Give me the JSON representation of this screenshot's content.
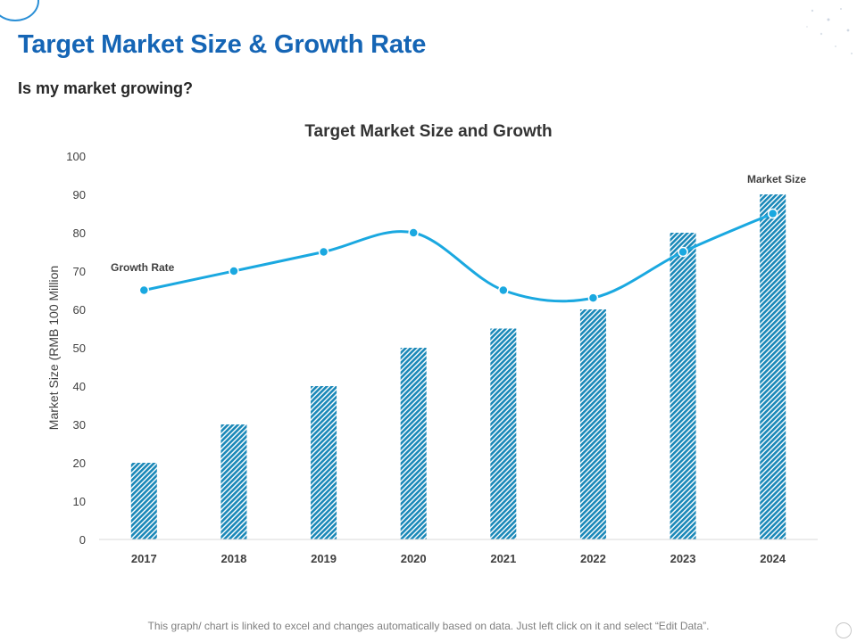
{
  "header": {
    "title": "Target Market Size & Growth Rate",
    "subtitle": "Is my market growing?"
  },
  "footer": {
    "note": "This graph/ chart is linked to excel and changes automatically based on data. Just left click on it and select “Edit Data”."
  },
  "colors": {
    "title": "#1565b5",
    "bar": "#1a88b8",
    "line": "#1aa8e0",
    "axis_text": "#404040"
  },
  "chart_data": {
    "type": "bar",
    "title": "Target Market Size and Growth",
    "xlabel": "",
    "ylabel": "Market Size (RMB 100 Million",
    "ylim": [
      0,
      100
    ],
    "yticks": [
      0,
      10,
      20,
      30,
      40,
      50,
      60,
      70,
      80,
      90,
      100
    ],
    "categories": [
      "2017",
      "2018",
      "2019",
      "2020",
      "2021",
      "2022",
      "2023",
      "2024"
    ],
    "series": [
      {
        "name": "Market Size",
        "type": "bar",
        "values": [
          20,
          30,
          40,
          50,
          55,
          60,
          80,
          90
        ]
      },
      {
        "name": "Growth Rate",
        "type": "line",
        "smooth": true,
        "values": [
          65,
          70,
          75,
          80,
          65,
          63,
          75,
          85
        ]
      }
    ],
    "annotations": [
      {
        "text": "Growth Rate",
        "series": "Growth Rate"
      },
      {
        "text": "Market Size",
        "series": "Market Size"
      }
    ]
  }
}
